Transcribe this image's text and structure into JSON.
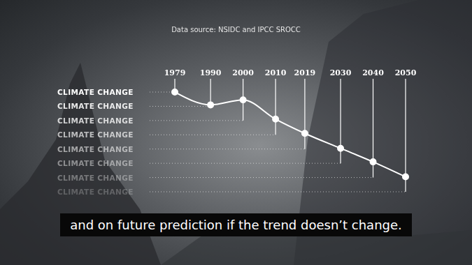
{
  "chart_data": {
    "type": "line",
    "title": "Data source: NSIDC and IPCC SROCC",
    "annotations": [
      "and on future prediction if the trend doesn’t change."
    ],
    "x": [
      1979,
      1990,
      2000,
      2010,
      2019,
      2030,
      2040,
      2050
    ],
    "values": [
      7,
      6.1,
      6.45,
      5.1,
      4.1,
      3.05,
      2.1,
      1.05
    ],
    "color": "#ffffff",
    "marker": "circle",
    "xlim": [
      1979,
      2050
    ],
    "xticks": [
      1979,
      1990,
      2000,
      2010,
      2019,
      2030,
      2040,
      2050
    ],
    "ylim": [
      0,
      7
    ],
    "yticks": [
      {
        "value": 0,
        "label": "CLIMATE CHANGE"
      },
      {
        "value": 1,
        "label": "CLIMATE CHANGE"
      },
      {
        "value": 2,
        "label": "CLIMATE CHANGE"
      },
      {
        "value": 3,
        "label": "CLIMATE CHANGE"
      },
      {
        "value": 4,
        "label": "CLIMATE CHANGE"
      },
      {
        "value": 5,
        "label": "CLIMATE CHANGE"
      },
      {
        "value": 6,
        "label": "CLIMATE CHANGE"
      },
      {
        "value": 7,
        "label": "CLIMATE CHANGE"
      }
    ]
  }
}
